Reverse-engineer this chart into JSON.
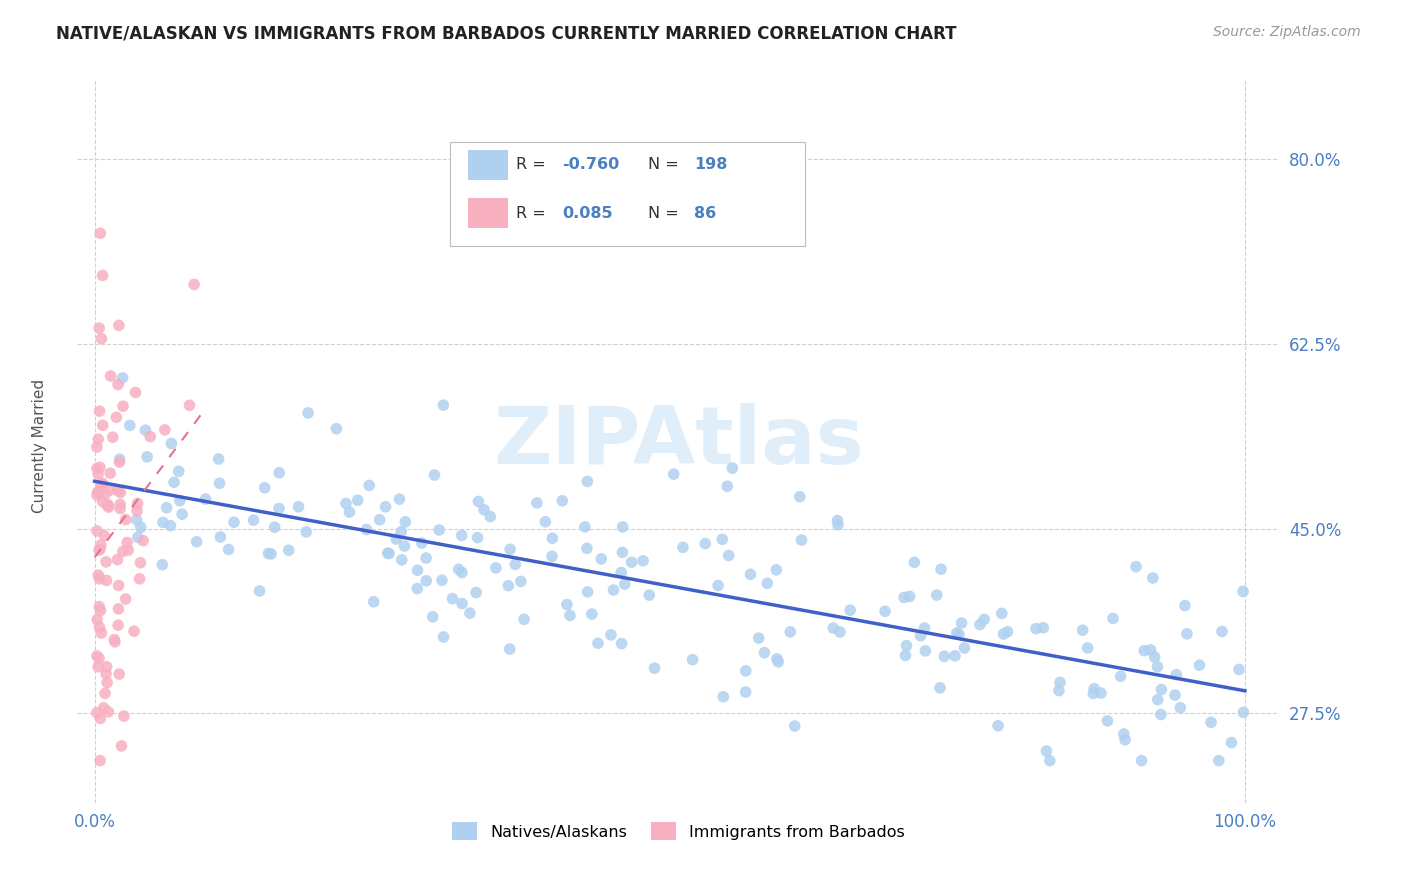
{
  "title": "NATIVE/ALASKAN VS IMMIGRANTS FROM BARBADOS CURRENTLY MARRIED CORRELATION CHART",
  "source": "Source: ZipAtlas.com",
  "ylabel": "Currently Married",
  "blue_R": "-0.760",
  "blue_N": "198",
  "pink_R": "0.085",
  "pink_N": "86",
  "blue_dot_color": "#b0d0f0",
  "pink_dot_color": "#f8b0c0",
  "blue_line_color": "#4060c8",
  "pink_line_color": "#e87090",
  "tick_label_color": "#4a7fc1",
  "text_value_color": "#4a7fc1",
  "legend_label_blue": "Natives/Alaskans",
  "legend_label_pink": "Immigrants from Barbados",
  "watermark_color": "#cce4f7",
  "ytick_labels": [
    "27.5%",
    "45.0%",
    "62.5%",
    "80.0%"
  ],
  "ytick_values": [
    0.275,
    0.45,
    0.625,
    0.8
  ],
  "xtick_labels": [
    "0.0%",
    "100.0%"
  ],
  "grid_color": "#d0d0d0",
  "ymin": 0.19,
  "ymax": 0.875,
  "xmin": -0.015,
  "xmax": 1.03
}
